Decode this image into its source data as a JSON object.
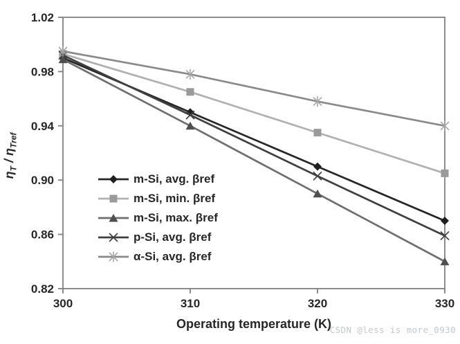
{
  "watermark": "CSDN @less is more_0930",
  "chart_data": {
    "type": "line",
    "title": "",
    "xlabel": "Operating temperature (K)",
    "ylabel": "ηT/ηTref",
    "ylabel_parts": {
      "eta1": "η",
      "sub1": "T",
      "slash": " / ",
      "eta2": "η",
      "sub2": "Tref"
    },
    "x": [
      300,
      310,
      320,
      330
    ],
    "x_ticks": [
      300,
      310,
      320,
      330
    ],
    "y_ticks": [
      0.82,
      0.86,
      0.9,
      0.94,
      0.98,
      1.02
    ],
    "xlim": [
      300,
      330
    ],
    "ylim": [
      0.82,
      1.02
    ],
    "grid": false,
    "legend_position": "inside-middle-left",
    "style": {
      "axis_color": "#7f7f7f",
      "text_color": "#262626",
      "background": "#ffffff"
    },
    "series": [
      {
        "id": "m-si-avg",
        "name": "m-Si, avg. βref",
        "marker": "diamond",
        "color": "#262626",
        "marker_color": "#1f1f1f",
        "values": [
          0.99,
          0.95,
          0.91,
          0.87
        ]
      },
      {
        "id": "m-si-min",
        "name": "m-Si, min. βref",
        "marker": "square",
        "color": "#b0b0b0",
        "marker_color": "#9a9a9a",
        "values": [
          0.993,
          0.965,
          0.935,
          0.905
        ]
      },
      {
        "id": "m-si-max",
        "name": "m-Si, max. βref",
        "marker": "triangle",
        "color": "#6e6e6e",
        "marker_color": "#4f4f4f",
        "values": [
          0.989,
          0.94,
          0.89,
          0.84
        ]
      },
      {
        "id": "p-si-avg",
        "name": "p-Si, avg. βref",
        "marker": "x",
        "color": "#3f3f3f",
        "marker_color": "#3f3f3f",
        "values": [
          0.992,
          0.948,
          0.903,
          0.859
        ]
      },
      {
        "id": "a-si-avg",
        "name": "α-Si, avg. βref",
        "marker": "asterisk",
        "color": "#8a8a8a",
        "marker_color": "#a6a6a6",
        "values": [
          0.995,
          0.978,
          0.958,
          0.94
        ]
      }
    ]
  }
}
